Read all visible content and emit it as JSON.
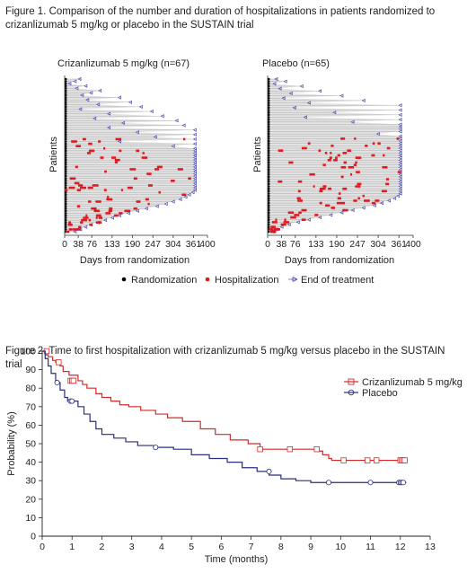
{
  "figure1": {
    "title": "Figure 1. Comparison of the number and duration of hospitalizations in patients randomized to crizanlizumab 5 mg/kg or placebo in the SUSTAIN trial",
    "panels": [
      {
        "title": "Crizanlizumab 5 mg/kg (n=67)",
        "ylabel": "Patients",
        "xlabel": "Days from randomization"
      },
      {
        "title": "Placebo (n=65)",
        "ylabel": "Patients",
        "xlabel": "Days from randomization"
      }
    ],
    "legend": [
      {
        "label": "Randomization",
        "color": "#000000",
        "marker": "dot"
      },
      {
        "label": "Hospitalization",
        "color": "#e0191f",
        "marker": "dot"
      },
      {
        "label": "End of treatment",
        "color": "#4a4aa8",
        "marker": "triangle-left"
      }
    ]
  },
  "figure2": {
    "title": "Figure 2. Time to first hospitalization with crizanlizumab 5 mg/kg versus placebo in the SUSTAIN trial",
    "legend": [
      {
        "label": "Crizanlizumab 5 mg/kg",
        "color": "#d42a2a",
        "marker": "square"
      },
      {
        "label": "Placebo",
        "color": "#2b2f7e",
        "marker": "circle"
      }
    ]
  },
  "chart_data": [
    {
      "type": "scatter",
      "subtype": "swimmer",
      "title": "Crizanlizumab 5 mg/kg (n=67)",
      "xlabel": "Days from randomization",
      "ylabel": "Patients",
      "xticks": [
        0,
        38,
        76,
        133,
        190,
        247,
        304,
        361,
        400
      ],
      "xlim": [
        0,
        400
      ],
      "n_patients": 67,
      "end_of_treatment_days_sorted": [
        38,
        25,
        10,
        55,
        30,
        95,
        70,
        45,
        150,
        60,
        180,
        90,
        210,
        40,
        240,
        120,
        270,
        80,
        310,
        160,
        330,
        120,
        361,
        200,
        361,
        250,
        361,
        150,
        361,
        300,
        361,
        361,
        361,
        361,
        361,
        361,
        361,
        361,
        361,
        361,
        361,
        361,
        361,
        361,
        361,
        361,
        361,
        361,
        361,
        355,
        345,
        335,
        320,
        300,
        280,
        255,
        225,
        200,
        175,
        150,
        130,
        110,
        90,
        70,
        55,
        40,
        25
      ]
    },
    {
      "type": "scatter",
      "subtype": "swimmer",
      "title": "Placebo (n=65)",
      "xlabel": "Days from randomization",
      "ylabel": "Patients",
      "xticks": [
        0,
        38,
        76,
        133,
        190,
        247,
        304,
        361,
        400
      ],
      "xlim": [
        0,
        400
      ],
      "n_patients": 65,
      "end_of_treatment_days_sorted": [
        20,
        45,
        15,
        90,
        30,
        140,
        60,
        200,
        40,
        260,
        110,
        361,
        70,
        361,
        180,
        361,
        100,
        361,
        230,
        361,
        361,
        361,
        361,
        300,
        361,
        361,
        361,
        361,
        361,
        361,
        361,
        361,
        361,
        361,
        361,
        361,
        361,
        361,
        361,
        361,
        361,
        361,
        361,
        361,
        361,
        361,
        361,
        361,
        361,
        355,
        345,
        330,
        310,
        290,
        260,
        230,
        200,
        170,
        140,
        110,
        80,
        55,
        35,
        20,
        10
      ]
    },
    {
      "type": "line",
      "subtype": "kaplan-meier",
      "xlabel": "Time (months)",
      "ylabel": "Probability (%)",
      "xlim": [
        0,
        13
      ],
      "ylim": [
        0,
        100
      ],
      "xticks": [
        0,
        1,
        2,
        3,
        4,
        5,
        6,
        7,
        8,
        9,
        10,
        11,
        12,
        13
      ],
      "yticks": [
        0,
        10,
        20,
        30,
        40,
        50,
        60,
        70,
        80,
        90,
        100
      ],
      "series": [
        {
          "name": "Crizanlizumab 5 mg/kg",
          "color": "#d42a2a",
          "step_x": [
            0,
            0.1,
            0.2,
            0.35,
            0.45,
            0.6,
            0.7,
            0.9,
            1.2,
            1.35,
            1.5,
            1.8,
            2.0,
            2.3,
            2.6,
            2.9,
            3.3,
            3.8,
            4.2,
            4.7,
            5.3,
            5.8,
            6.3,
            6.9,
            7.3,
            8.0,
            8.8,
            9.2,
            9.4,
            9.6,
            9.7,
            12.2
          ],
          "step_y": [
            100,
            98,
            97,
            95,
            94,
            92,
            89,
            87,
            84,
            82,
            80,
            77,
            75,
            73,
            71,
            70,
            68,
            66,
            64,
            62,
            58,
            55,
            52,
            50,
            47,
            47,
            47,
            46,
            44,
            42,
            41,
            41
          ],
          "censored_x": [
            0.15,
            0.55,
            0.95,
            1.0,
            1.05,
            7.3,
            8.3,
            9.2,
            10.1,
            10.9,
            11.2,
            12.0,
            12.05,
            12.1,
            12.15
          ],
          "censored_y": [
            100,
            94,
            84,
            84,
            84,
            47,
            47,
            47,
            41,
            41,
            41,
            41,
            41,
            41,
            41
          ]
        },
        {
          "name": "Placebo",
          "color": "#2b2f7e",
          "step_x": [
            0,
            0.1,
            0.2,
            0.3,
            0.45,
            0.6,
            0.75,
            0.85,
            1.2,
            1.4,
            1.6,
            1.8,
            2.0,
            2.4,
            2.8,
            3.2,
            3.8,
            4.4,
            5.0,
            5.6,
            6.2,
            6.7,
            7.2,
            7.6,
            8.0,
            8.5,
            9.0,
            12.2
          ],
          "step_y": [
            100,
            96,
            92,
            88,
            83,
            79,
            75,
            73,
            70,
            66,
            62,
            58,
            55,
            53,
            51,
            49,
            48,
            47,
            44,
            42,
            40,
            37,
            35,
            33,
            31,
            30,
            29,
            29
          ],
          "censored_x": [
            0.5,
            0.95,
            1.0,
            3.8,
            7.6,
            9.6,
            11.0,
            11.95,
            12.0,
            12.05,
            12.1
          ],
          "censored_y": [
            83,
            73,
            73,
            48,
            35,
            29,
            29,
            29,
            29,
            29,
            29
          ]
        }
      ]
    }
  ]
}
